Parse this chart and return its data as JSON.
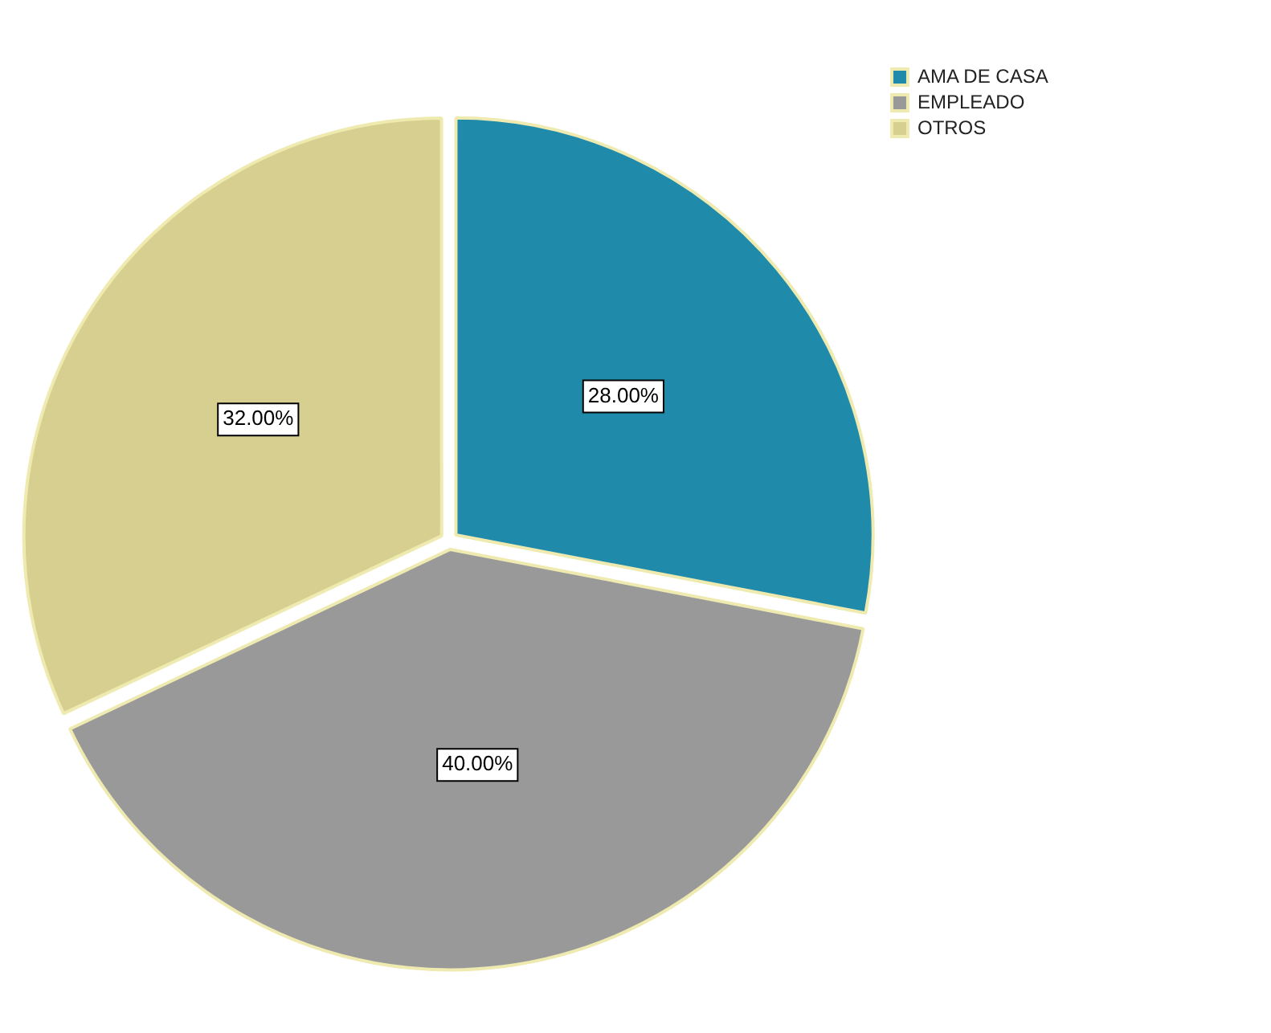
{
  "chart_data": {
    "type": "pie",
    "categories": [
      "AMA DE CASA",
      "EMPLEADO",
      "OTROS"
    ],
    "values": [
      28,
      40,
      32
    ],
    "colors": [
      "#1f8aaa",
      "#999999",
      "#d6cf8f"
    ],
    "value_labels": [
      "28.00%",
      "40.00%",
      "32.00%"
    ],
    "legend": "top right"
  }
}
